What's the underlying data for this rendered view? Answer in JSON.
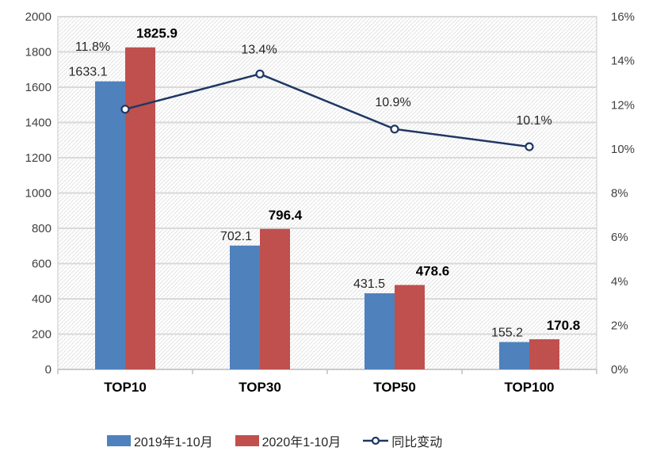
{
  "chart_data": {
    "type": "combo-bar-line",
    "categories": [
      "TOP10",
      "TOP30",
      "TOP50",
      "TOP100"
    ],
    "series": [
      {
        "name": "2019年1-10月",
        "type": "bar",
        "color": "#4F81BC",
        "values": [
          1633.1,
          702.1,
          431.5,
          155.2
        ],
        "labels": [
          "1633.1",
          "702.1",
          "431.5",
          "155.2"
        ]
      },
      {
        "name": "2020年1-10月",
        "type": "bar",
        "color": "#C0504D",
        "values": [
          1825.9,
          796.4,
          478.6,
          170.8
        ],
        "labels": [
          "1825.9",
          "796.4",
          "478.6",
          "170.8"
        ]
      },
      {
        "name": "同比变动",
        "type": "line",
        "color": "#1F3864",
        "values": [
          11.8,
          13.4,
          10.9,
          10.1
        ],
        "labels": [
          "11.8%",
          "13.4%",
          "10.9%",
          "10.1%"
        ]
      }
    ],
    "left_axis": {
      "min": 0,
      "max": 2000,
      "step": 200,
      "ticks": [
        "0",
        "200",
        "400",
        "600",
        "800",
        "1000",
        "1200",
        "1400",
        "1600",
        "1800",
        "2000"
      ]
    },
    "right_axis": {
      "min": 0,
      "max": 16,
      "step": 2,
      "ticks": [
        "0%",
        "2%",
        "4%",
        "6%",
        "8%",
        "10%",
        "12%",
        "14%",
        "16%"
      ]
    },
    "grid": true,
    "legend_position": "bottom",
    "colors": {
      "gridline": "#D9D9D9",
      "axis_line": "#BFBFBF",
      "hatch": "#E2E2E2",
      "tick_label": "#404040",
      "data_label": "#262626",
      "category_label": "#000000"
    }
  }
}
